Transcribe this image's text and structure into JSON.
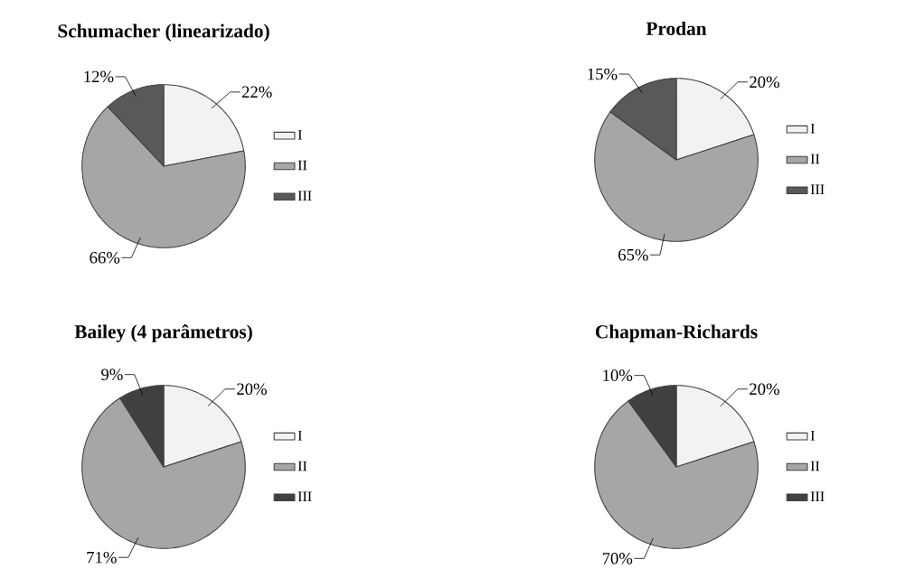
{
  "chart_data": [
    {
      "type": "pie",
      "title": "Schumacher (linearizado)",
      "categories": [
        "I",
        "II",
        "III"
      ],
      "values": [
        22,
        66,
        12
      ],
      "value_labels": [
        "22%",
        "66%",
        "12%"
      ],
      "colors": [
        "#f2f2f2",
        "#a6a6a6",
        "#595959"
      ],
      "legend": "right"
    },
    {
      "type": "pie",
      "title": "Prodan",
      "categories": [
        "I",
        "II",
        "III"
      ],
      "values": [
        20,
        65,
        15
      ],
      "value_labels": [
        "20%",
        "65%",
        "15%"
      ],
      "colors": [
        "#f2f2f2",
        "#a6a6a6",
        "#595959"
      ],
      "legend": "right"
    },
    {
      "type": "pie",
      "title": "Bailey (4 parâmetros)",
      "categories": [
        "I",
        "II",
        "III"
      ],
      "values": [
        20,
        71,
        9
      ],
      "value_labels": [
        "20%",
        "71%",
        "9%"
      ],
      "colors": [
        "#f2f2f2",
        "#a6a6a6",
        "#404040"
      ],
      "legend": "right"
    },
    {
      "type": "pie",
      "title": "Chapman-Richards",
      "categories": [
        "I",
        "II",
        "III"
      ],
      "values": [
        20,
        70,
        10
      ],
      "value_labels": [
        "20%",
        "70%",
        "10%"
      ],
      "colors": [
        "#f2f2f2",
        "#a6a6a6",
        "#404040"
      ],
      "legend": "right"
    }
  ]
}
